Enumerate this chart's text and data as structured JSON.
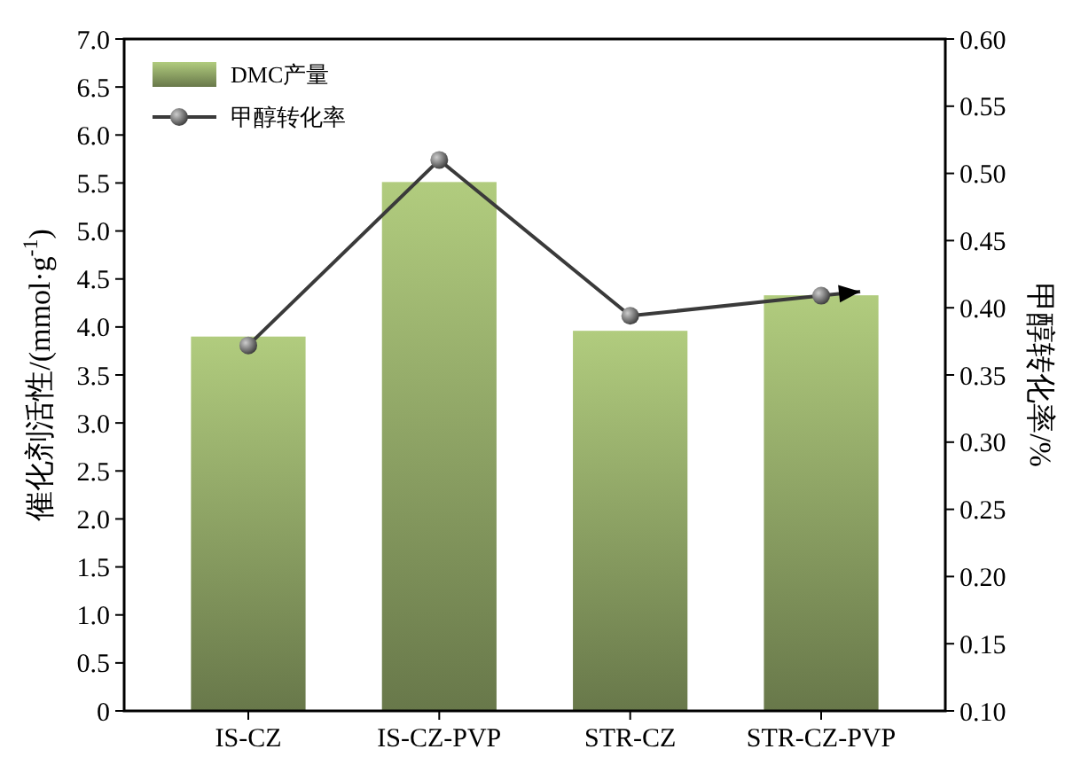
{
  "chart_data": {
    "type": "bar",
    "categories": [
      "IS-CZ",
      "IS-CZ-PVP",
      "STR-CZ",
      "STR-CZ-PVP"
    ],
    "ylabel": "催化剂活性/(mmol·g$^{-1}$)",
    "y2label": "甲醇转化率/%",
    "series": [
      {
        "name": "DMC产量",
        "color": "#8fa566",
        "values": [
          3.9,
          5.51,
          3.96,
          4.33
        ]
      },
      {
        "name": "甲醇转化率",
        "type": "line",
        "axis": "y2",
        "color": "#3a3a3a",
        "marker": "circle",
        "values": [
          0.372,
          0.51,
          0.394,
          0.409
        ]
      }
    ],
    "ylim": [
      0,
      7
    ],
    "yticks": [
      {
        "value": 0,
        "label": "0"
      },
      {
        "value": 0.5,
        "label": "0.5"
      },
      {
        "value": 1,
        "label": "1.0"
      },
      {
        "value": 1.5,
        "label": "1.5"
      },
      {
        "value": 2,
        "label": "2.0"
      },
      {
        "value": 2.5,
        "label": "2.5"
      },
      {
        "value": 3,
        "label": "3.0"
      },
      {
        "value": 3.5,
        "label": "3.5"
      },
      {
        "value": 4,
        "label": "4.0"
      },
      {
        "value": 4.5,
        "label": "4.5"
      },
      {
        "value": 5,
        "label": "5.0"
      },
      {
        "value": 5.5,
        "label": "5.5"
      },
      {
        "value": 6,
        "label": "6.0"
      },
      {
        "value": 6.5,
        "label": "6.5"
      },
      {
        "value": 7,
        "label": "7.0"
      }
    ],
    "y2lim": [
      0.1,
      0.6
    ],
    "y2ticks": [
      {
        "value": 0.1,
        "label": "0.10"
      },
      {
        "value": 0.15,
        "label": "0.15"
      },
      {
        "value": 0.2,
        "label": "0.20"
      },
      {
        "value": 0.25,
        "label": "0.25"
      },
      {
        "value": 0.3,
        "label": "0.30"
      },
      {
        "value": 0.35,
        "label": "0.35"
      },
      {
        "value": 0.4,
        "label": "0.40"
      },
      {
        "value": 0.45,
        "label": "0.45"
      },
      {
        "value": 0.5,
        "label": "0.50"
      },
      {
        "value": 0.55,
        "label": "0.55"
      },
      {
        "value": 0.6,
        "label": "0.60"
      }
    ],
    "legend": "top left"
  }
}
